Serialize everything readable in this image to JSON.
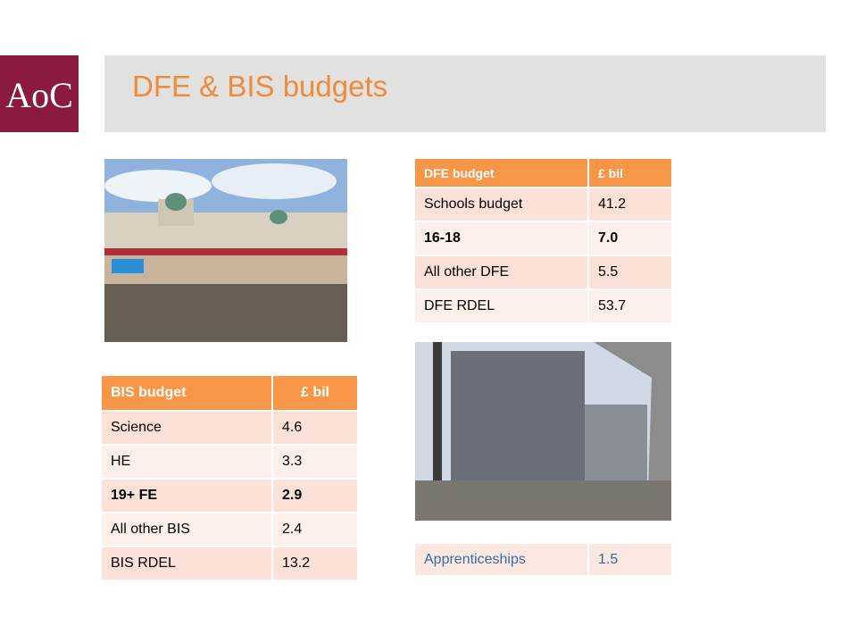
{
  "logo": "AoC",
  "header": {
    "title": "DFE & BIS budgets"
  },
  "dfe_table": {
    "columns": [
      "DFE budget",
      "£ bil"
    ],
    "rows": [
      [
        "Schools budget",
        "41.2"
      ],
      [
        "16-18",
        "7.0"
      ],
      [
        "All other DFE",
        "5.5"
      ],
      [
        "DFE RDEL",
        "53.7"
      ]
    ],
    "bold_rows": [
      1
    ]
  },
  "bis_table": {
    "columns": [
      "BIS budget",
      "£ bil"
    ],
    "rows": [
      [
        "Science",
        "4.6"
      ],
      [
        "HE",
        "3.3"
      ],
      [
        "19+ FE",
        "2.9"
      ],
      [
        "All other BIS",
        "2.4"
      ],
      [
        "BIS RDEL",
        "13.2"
      ]
    ],
    "bold_rows": [
      2
    ]
  },
  "apprenticeships": [
    "Apprenticeships",
    "1.5"
  ]
}
